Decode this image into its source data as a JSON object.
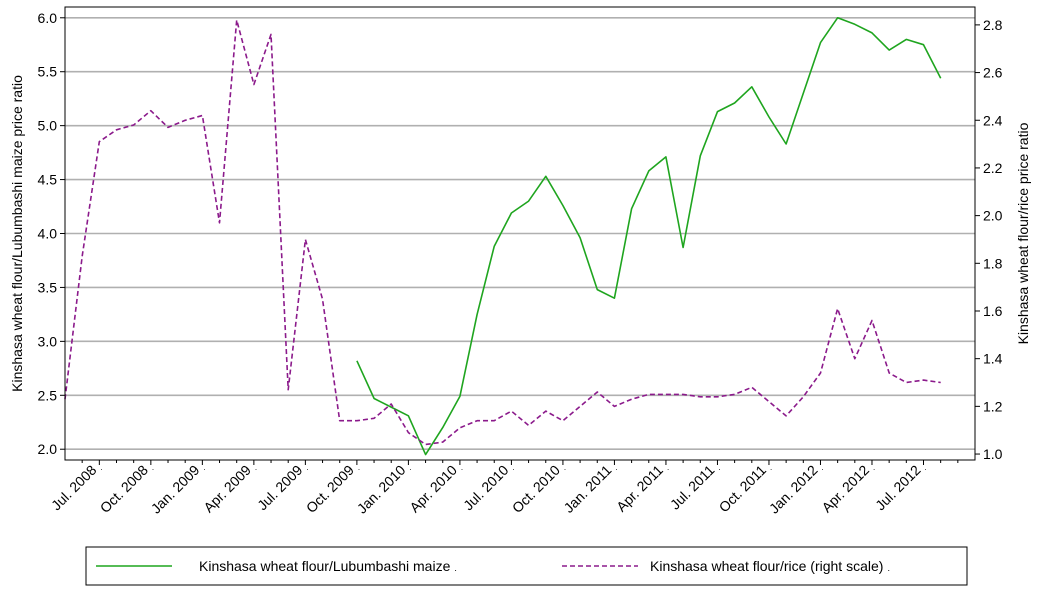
{
  "chart_data": {
    "type": "line",
    "title": "",
    "xlabel": "",
    "ylabel": "Kinshasa wheat flour/Lubumbashi maize price ratio",
    "y2label": "Kinshasa wheat flour/rice price ratio",
    "ylim": [
      1.9,
      6.1
    ],
    "y2lim": [
      0.975,
      2.875
    ],
    "y_ticks": [
      "2.0",
      "2.5",
      "3.0",
      "3.5",
      "4.0",
      "4.5",
      "5.0",
      "5.5",
      "6.0"
    ],
    "y2_ticks": [
      "1.0",
      "1.2",
      "1.4",
      "1.6",
      "1.8",
      "2.0",
      "2.2",
      "2.4",
      "2.6",
      "2.8"
    ],
    "x_tick_labels": [
      "Jul. 2008",
      "Oct. 2008",
      "Jan. 2009",
      "Apr. 2009",
      "Jul. 2009",
      "Oct. 2009",
      "Jan. 2010",
      "Apr. 2010",
      "Jul. 2010",
      "Oct. 2010",
      "Jan. 2011",
      "Apr. 2011",
      "Jul. 2011",
      "Oct. 2011",
      "Jan. 2012",
      "Apr. 2012",
      "Jul. 2012"
    ],
    "x_tick_months": [
      0,
      3,
      6,
      9,
      12,
      15,
      18,
      21,
      24,
      27,
      30,
      33,
      36,
      39,
      42,
      45,
      48
    ],
    "x_range_months": [
      -2,
      51
    ],
    "grid": true,
    "legend_position": "bottom",
    "series": [
      {
        "name": "Kinshasa wheat flour/Lubumbashi maize",
        "axis": "left",
        "style": "solid",
        "color": "#1fa51f",
        "x_months": [
          15,
          16,
          17,
          18,
          19,
          20,
          21,
          22,
          23,
          24,
          25,
          26,
          27,
          28,
          29,
          30,
          31,
          32,
          33,
          34,
          35,
          36,
          37,
          38,
          39,
          40,
          41,
          42,
          43,
          44,
          45,
          46,
          47,
          48,
          49
        ],
        "values": [
          2.82,
          2.47,
          2.39,
          2.31,
          1.95,
          2.2,
          2.49,
          3.25,
          3.88,
          4.19,
          4.3,
          4.53,
          4.26,
          3.96,
          3.48,
          3.4,
          4.23,
          4.58,
          4.71,
          3.87,
          4.72,
          5.13,
          5.21,
          5.36,
          5.08,
          4.83,
          5.3,
          5.77,
          6.0,
          5.94,
          5.86,
          5.7,
          5.8,
          5.75,
          5.44
        ]
      },
      {
        "name": "Kinshasa wheat flour/rice (right scale)",
        "axis": "right",
        "style": "dashed",
        "color": "#8b1a8b",
        "x_months": [
          -2,
          -1,
          0,
          1,
          2,
          3,
          4,
          5,
          6,
          7,
          8,
          9,
          10,
          11,
          12,
          13,
          14,
          15,
          16,
          17,
          18,
          19,
          20,
          21,
          22,
          23,
          24,
          25,
          26,
          27,
          28,
          29,
          30,
          31,
          32,
          33,
          34,
          35,
          36,
          37,
          38,
          39,
          40,
          41,
          42,
          43,
          44,
          45,
          46,
          47,
          48,
          49
        ],
        "values": [
          1.23,
          1.83,
          2.31,
          2.36,
          2.38,
          2.44,
          2.37,
          2.4,
          2.42,
          1.97,
          2.82,
          2.55,
          2.76,
          1.27,
          1.9,
          1.65,
          1.14,
          1.14,
          1.15,
          1.21,
          1.09,
          1.04,
          1.05,
          1.11,
          1.14,
          1.14,
          1.18,
          1.12,
          1.18,
          1.14,
          1.2,
          1.26,
          1.2,
          1.23,
          1.25,
          1.25,
          1.25,
          1.24,
          1.24,
          1.25,
          1.28,
          1.22,
          1.16,
          1.24,
          1.34,
          1.61,
          1.4,
          1.56,
          1.34,
          1.3,
          1.31,
          1.3
        ]
      }
    ]
  },
  "legend": {
    "items": [
      {
        "label": "Kinshasa wheat flour/Lubumbashi maize",
        "suffix": ".",
        "style": "solid"
      },
      {
        "label": "Kinshasa wheat flour/rice (right scale)",
        "suffix": ".",
        "style": "dashed"
      }
    ]
  }
}
